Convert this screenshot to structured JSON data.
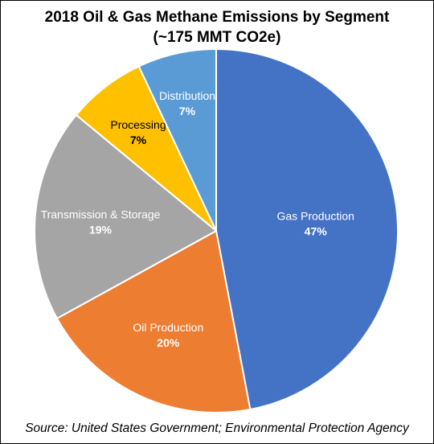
{
  "chart_data": {
    "type": "pie",
    "title": "2018 Oil & Gas Methane Emissions by Segment",
    "subtitle": "(~175 MMT CO2e)",
    "slices": [
      {
        "label": "Gas Production",
        "value": 47,
        "value_label": "47%",
        "color": "#4472C4",
        "text_color": "#ffffff"
      },
      {
        "label": "Oil Production",
        "value": 20,
        "value_label": "20%",
        "color": "#ED7D31",
        "text_color": "#ffffff"
      },
      {
        "label": "Transmission & Storage",
        "value": 19,
        "value_label": "19%",
        "color": "#A5A5A5",
        "text_color": "#ffffff"
      },
      {
        "label": "Processing",
        "value": 7,
        "value_label": "7%",
        "color": "#FFC000",
        "text_color": "#000000"
      },
      {
        "label": "Distribution",
        "value": 7,
        "value_label": "7%",
        "color": "#5B9BD5",
        "text_color": "#ffffff"
      }
    ],
    "start": "12 o'clock",
    "direction": "clockwise"
  },
  "source": "Source: United States Government; Environmental Protection Agency"
}
